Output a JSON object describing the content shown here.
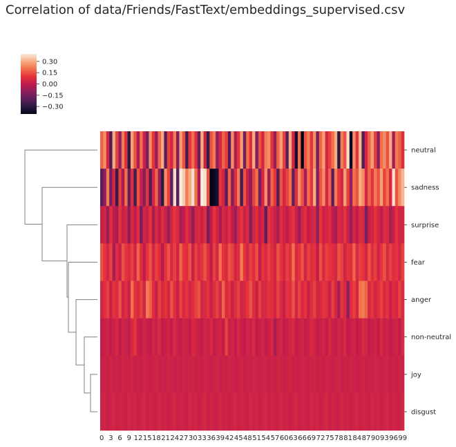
{
  "title": "Correlation of data/Friends/FastText/embeddings_supervised.csv",
  "chart_data": {
    "type": "heatmap",
    "title": "Correlation of data/Friends/FastText/embeddings_supervised.csv",
    "clustered": true,
    "row_dendrogram": true,
    "rows": [
      "neutral",
      "sadness",
      "surprise",
      "fear",
      "anger",
      "non-neutral",
      "joy",
      "disgust"
    ],
    "column_count": 100,
    "x_tick_labels": [
      "0",
      "3",
      "6",
      "9",
      "12",
      "15",
      "18",
      "21",
      "24",
      "27",
      "30",
      "33",
      "36",
      "39",
      "42",
      "45",
      "48",
      "51",
      "54",
      "57",
      "60",
      "63",
      "66",
      "69",
      "72",
      "75",
      "78",
      "81",
      "84",
      "87",
      "90",
      "93",
      "96",
      "99"
    ],
    "colorbar": {
      "ticks": [
        "0.30",
        "0.15",
        "0.00",
        "−0.15",
        "−0.30"
      ],
      "tick_values": [
        0.3,
        0.15,
        0.0,
        -0.15,
        -0.3
      ],
      "vmin": -0.4,
      "vmax": 0.4,
      "colormap": "rocket"
    },
    "dendrogram": {
      "merges": [
        {
          "a": "joy",
          "b": "disgust"
        },
        {
          "a": "non-neutral",
          "b": "joy+disgust"
        },
        {
          "a": "anger",
          "b": "non-neutral+joy+disgust"
        },
        {
          "a": "fear",
          "b": "anger+non-neutral+joy+disgust"
        },
        {
          "a": "surprise",
          "b": "fear+anger+non-neutral+joy+disgust"
        },
        {
          "a": "sadness",
          "b": "surprise+fear+anger+non-neutral+joy+disgust"
        },
        {
          "a": "neutral",
          "b": "sadness+surprise+fear+anger+non-neutral+joy+disgust"
        }
      ]
    },
    "values": [
      [
        0.18,
        0.25,
        0.05,
        -0.22,
        0.3,
        0.12,
        -0.1,
        0.22,
        0.08,
        -0.3,
        0.28,
        0.15,
        -0.05,
        0.2,
        0.02,
        -0.15,
        0.25,
        0.1,
        -0.08,
        0.18,
        0.3,
        -0.2,
        0.12,
        0.05,
        0.22,
        -0.12,
        0.28,
        0.15,
        -0.25,
        0.1,
        0.2,
        0.08,
        -0.18,
        0.3,
        0.02,
        -0.28,
        0.15,
        0.22,
        -0.1,
        0.05,
        0.18,
        0.12,
        -0.22,
        0.25,
        -0.05,
        0.1,
        0.28,
        -0.15,
        0.2,
        0.08,
        0.3,
        -0.12,
        0.15,
        0.05,
        0.22,
        0.25,
        0.1,
        -0.08,
        0.18,
        0.28,
        0.12,
        -0.2,
        0.3,
        0.05,
        -0.35,
        0.2,
        -0.4,
        0.15,
        0.22,
        0.1,
        0.25,
        -0.15,
        0.18,
        0.28,
        0.05,
        0.12,
        0.2,
        0.3,
        -0.3,
        0.22,
        0.15,
        0.38,
        -0.38,
        0.25,
        0.1,
        0.32,
        -0.22,
        0.05,
        0.18,
        0.28,
        0.12,
        -0.1,
        0.2,
        0.25,
        0.15,
        0.3,
        -0.05,
        0.22,
        0.18,
        0.08
      ],
      [
        -0.2,
        -0.1,
        0.22,
        -0.15,
        0.05,
        -0.28,
        0.12,
        -0.05,
        0.2,
        -0.18,
        0.08,
        -0.25,
        0.15,
        0.02,
        -0.12,
        0.1,
        -0.22,
        0.05,
        0.18,
        -0.08,
        -0.3,
        0.25,
        0.12,
        -0.18,
        0.38,
        -0.2,
        0.4,
        0.35,
        0.22,
        0.3,
        0.38,
        0.2,
        -0.05,
        0.4,
        0.38,
        0.15,
        -0.4,
        -0.38,
        -0.35,
        0.1,
        0.05,
        -0.2,
        0.18,
        -0.12,
        0.08,
        0.22,
        -0.25,
        0.15,
        0.02,
        -0.1,
        0.12,
        0.2,
        -0.15,
        0.05,
        0.25,
        -0.08,
        0.18,
        0.1,
        -0.22,
        0.15,
        0.05,
        0.12,
        0.2,
        -0.18,
        0.08,
        0.25,
        0.15,
        -0.05,
        0.2,
        0.1,
        0.3,
        -0.12,
        0.15,
        0.25,
        0.05,
        0.18,
        -0.2,
        0.22,
        0.1,
        0.05,
        0.28,
        0.12,
        -0.08,
        0.2,
        0.15,
        0.3,
        0.25,
        0.05,
        0.18,
        0.1,
        0.22,
        0.15,
        0.28,
        0.12,
        0.2,
        0.05,
        0.38,
        0.15,
        0.25,
        0.32
      ],
      [
        0.02,
        0.05,
        -0.08,
        0.08,
        0.0,
        -0.05,
        0.1,
        0.02,
        0.05,
        -0.1,
        0.06,
        0.0,
        0.08,
        -0.15,
        0.04,
        0.02,
        0.1,
        -0.05,
        0.06,
        0.0,
        0.08,
        0.02,
        -0.08,
        0.04,
        0.1,
        0.06,
        -0.05,
        0.0,
        0.08,
        0.02,
        -0.1,
        0.05,
        0.06,
        0.02,
        0.08,
        -0.15,
        0.0,
        0.1,
        0.04,
        -0.05,
        0.06,
        0.02,
        0.08,
        0.0,
        -0.08,
        0.05,
        0.1,
        0.02,
        0.06,
        -0.12,
        0.04,
        0.08,
        0.0,
        0.05,
        -0.2,
        0.1,
        0.06,
        0.02,
        -0.05,
        0.08,
        0.04,
        0.0,
        0.06,
        0.1,
        0.02,
        -0.08,
        0.05,
        0.08,
        0.0,
        0.04,
        0.06,
        -0.1,
        0.1,
        0.02,
        0.05,
        0.08,
        0.0,
        -0.05,
        0.06,
        0.04,
        0.1,
        0.02,
        -0.08,
        0.05,
        0.0,
        0.08,
        0.06,
        -0.15,
        0.02,
        0.04,
        0.1,
        0.05,
        0.0,
        0.08,
        0.06,
        -0.05,
        0.02,
        0.1,
        0.04,
        0.05
      ],
      [
        0.15,
        0.1,
        0.05,
        0.12,
        -0.05,
        0.08,
        0.02,
        0.15,
        0.1,
        0.06,
        0.12,
        0.04,
        0.18,
        0.08,
        0.0,
        0.1,
        0.15,
        0.05,
        0.12,
        0.08,
        -0.02,
        0.1,
        0.15,
        0.06,
        0.12,
        0.04,
        0.18,
        0.1,
        0.08,
        0.15,
        0.02,
        0.12,
        0.06,
        0.1,
        0.15,
        0.08,
        0.0,
        0.12,
        0.05,
        0.2,
        0.1,
        0.06,
        0.15,
        0.12,
        0.04,
        0.08,
        0.22,
        0.1,
        0.05,
        0.12,
        0.08,
        0.15,
        0.0,
        0.1,
        0.06,
        0.12,
        0.08,
        0.04,
        0.15,
        0.1,
        0.05,
        0.12,
        0.08,
        0.2,
        0.06,
        0.1,
        0.15,
        0.04,
        0.12,
        0.08,
        0.1,
        0.0,
        0.15,
        0.06,
        0.12,
        0.1,
        0.08,
        0.05,
        0.15,
        0.12,
        0.04,
        0.1,
        0.08,
        0.18,
        0.06,
        0.12,
        0.1,
        0.05,
        0.15,
        0.08,
        0.12,
        0.04,
        0.1,
        0.15,
        0.06,
        0.12,
        0.08,
        0.1,
        0.05,
        0.12
      ],
      [
        0.05,
        0.08,
        0.12,
        0.02,
        0.1,
        0.06,
        0.15,
        0.04,
        0.08,
        0.02,
        0.2,
        0.1,
        0.06,
        0.12,
        0.05,
        0.22,
        0.18,
        0.08,
        0.02,
        0.12,
        0.06,
        0.1,
        0.04,
        0.15,
        0.08,
        0.02,
        0.12,
        0.06,
        0.1,
        0.05,
        0.08,
        0.12,
        0.15,
        0.04,
        0.06,
        0.1,
        0.02,
        0.08,
        0.12,
        0.05,
        0.18,
        0.06,
        0.1,
        0.02,
        0.08,
        0.12,
        0.04,
        0.06,
        0.1,
        0.15,
        0.08,
        0.02,
        0.12,
        0.05,
        0.06,
        0.1,
        0.08,
        0.04,
        0.12,
        0.06,
        0.02,
        0.1,
        0.08,
        0.15,
        0.05,
        0.12,
        0.06,
        0.1,
        0.02,
        0.08,
        0.12,
        0.04,
        0.06,
        0.1,
        0.08,
        0.02,
        0.12,
        0.05,
        -0.05,
        0.1,
        0.06,
        -0.1,
        0.08,
        0.12,
        0.05,
        0.2,
        0.22,
        0.18,
        0.06,
        0.1,
        0.04,
        0.08,
        0.12,
        0.06,
        0.1,
        0.02,
        0.08,
        0.05,
        0.12,
        0.06
      ],
      [
        0.0,
        0.02,
        0.04,
        0.0,
        0.02,
        0.06,
        0.0,
        0.04,
        0.02,
        0.0,
        0.06,
        0.1,
        0.02,
        0.0,
        0.04,
        0.02,
        0.0,
        0.04,
        0.02,
        0.06,
        0.0,
        0.02,
        0.04,
        0.0,
        0.06,
        0.02,
        0.0,
        0.04,
        0.02,
        0.0,
        0.06,
        0.04,
        0.02,
        0.0,
        0.04,
        0.02,
        0.06,
        0.0,
        0.02,
        0.04,
        0.0,
        0.12,
        0.02,
        0.04,
        0.0,
        0.06,
        0.02,
        0.0,
        0.04,
        0.02,
        0.06,
        0.0,
        0.02,
        0.04,
        0.0,
        0.02,
        0.06,
        -0.05,
        0.02,
        0.04,
        0.0,
        0.02,
        0.04,
        0.06,
        0.0,
        0.02,
        0.04,
        0.0,
        0.02,
        0.06,
        0.04,
        0.0,
        0.02,
        0.04,
        0.0,
        0.06,
        0.02,
        0.0,
        0.04,
        0.02,
        0.06,
        0.0,
        0.02,
        0.04,
        0.0,
        0.02,
        0.06,
        0.04,
        0.0,
        0.02,
        0.04,
        0.0,
        0.06,
        0.02,
        0.04,
        0.0,
        0.02,
        0.04,
        0.0,
        0.06
      ],
      [
        0.02,
        0.03,
        0.02,
        0.04,
        0.02,
        0.03,
        0.02,
        0.04,
        0.03,
        0.02,
        0.04,
        0.02,
        0.03,
        0.02,
        0.04,
        0.03,
        0.02,
        0.03,
        0.04,
        0.02,
        0.03,
        0.02,
        0.04,
        0.03,
        0.02,
        0.03,
        0.02,
        0.04,
        0.02,
        0.03,
        0.04,
        0.02,
        0.03,
        0.02,
        0.04,
        0.03,
        0.02,
        0.03,
        0.04,
        0.02,
        0.03,
        0.02,
        0.04,
        0.03,
        0.02,
        0.03,
        0.04,
        0.02,
        0.03,
        0.02,
        0.04,
        0.03,
        0.02,
        0.03,
        0.04,
        0.02,
        0.03,
        0.02,
        0.04,
        0.03,
        0.02,
        0.03,
        0.04,
        0.02,
        0.03,
        0.02,
        0.04,
        0.03,
        0.02,
        0.03,
        0.04,
        0.02,
        0.03,
        0.02,
        0.04,
        0.03,
        0.02,
        0.03,
        0.04,
        0.02,
        0.03,
        0.02,
        0.04,
        0.03,
        0.02,
        0.03,
        0.04,
        0.02,
        0.03,
        0.02,
        0.04,
        0.03,
        0.02,
        0.03,
        0.04,
        0.02,
        0.03,
        0.02,
        0.04,
        0.03
      ],
      [
        0.03,
        0.04,
        0.02,
        0.03,
        0.05,
        0.02,
        0.04,
        0.03,
        0.02,
        0.05,
        0.03,
        0.04,
        0.02,
        0.03,
        0.05,
        0.02,
        0.04,
        0.03,
        0.02,
        0.05,
        0.03,
        0.04,
        0.02,
        0.03,
        0.05,
        0.02,
        0.04,
        0.03,
        0.02,
        0.05,
        0.03,
        0.04,
        0.02,
        0.03,
        0.05,
        0.02,
        0.04,
        0.03,
        0.02,
        0.05,
        0.03,
        0.04,
        0.02,
        0.03,
        0.05,
        0.02,
        0.04,
        0.03,
        0.02,
        0.05,
        0.03,
        0.04,
        0.02,
        0.03,
        0.05,
        0.02,
        0.04,
        0.03,
        0.02,
        0.05,
        0.03,
        0.04,
        0.02,
        0.03,
        0.05,
        0.02,
        0.04,
        0.03,
        0.02,
        0.05,
        0.03,
        0.04,
        0.02,
        0.03,
        0.05,
        0.02,
        0.04,
        0.03,
        0.02,
        0.05,
        0.03,
        0.04,
        0.02,
        0.03,
        0.05,
        0.02,
        0.04,
        0.03,
        0.02,
        0.05,
        0.03,
        0.04,
        0.02,
        0.03,
        0.05,
        0.02,
        0.04,
        0.03,
        0.02,
        0.05
      ]
    ]
  }
}
